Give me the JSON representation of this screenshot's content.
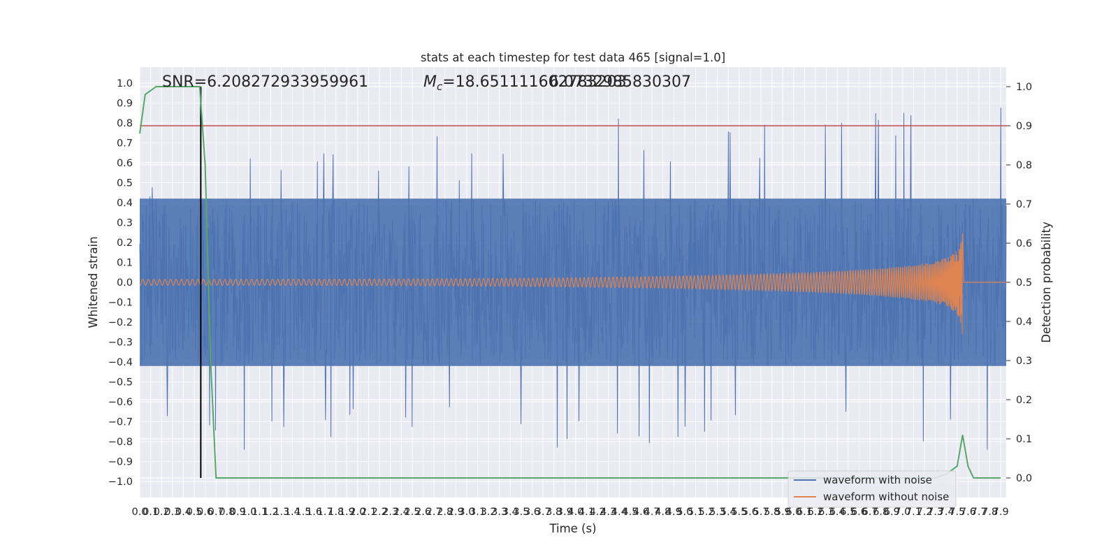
{
  "chart_data": {
    "type": "line",
    "title": "stats at each timestep for test data 465 [signal=1.0]",
    "xlabel": "Time (s)",
    "ylabel_left": "Whitened strain",
    "ylabel_right": "Detection probability",
    "xlim": [
      0.0,
      7.95
    ],
    "ylim_left": [
      -1.08,
      1.08
    ],
    "ylim_right": [
      -0.05,
      1.05
    ],
    "grid": true,
    "x_ticks": [
      "0.0",
      "0.1",
      "0.2",
      "0.3",
      "0.4",
      "0.5",
      "0.6",
      "0.7",
      "0.8",
      "0.9",
      "1.0",
      "1.1",
      "1.2",
      "1.3",
      "1.4",
      "1.5",
      "1.6",
      "1.7",
      "1.8",
      "1.9",
      "2.0",
      "2.1",
      "2.2",
      "2.3",
      "2.4",
      "2.5",
      "2.6",
      "2.7",
      "2.8",
      "2.9",
      "3.0",
      "3.1",
      "3.2",
      "3.3",
      "3.4",
      "3.5",
      "3.6",
      "3.7",
      "3.8",
      "3.9",
      "4.0",
      "4.1",
      "4.2",
      "4.3",
      "4.4",
      "4.5",
      "4.6",
      "4.7",
      "4.8",
      "4.9",
      "5.0",
      "5.1",
      "5.2",
      "5.3",
      "5.4",
      "5.5",
      "5.6",
      "5.7",
      "5.8",
      "5.9",
      "6.0",
      "6.1",
      "6.2",
      "6.3",
      "6.4",
      "6.5",
      "6.6",
      "6.7",
      "6.8",
      "6.9",
      "7.0",
      "7.1",
      "7.2",
      "7.3",
      "7.4",
      "7.5",
      "7.6",
      "7.7",
      "7.8",
      "7.9"
    ],
    "y_ticks_left": [
      "−1.0",
      "−0.9",
      "−0.8",
      "−0.7",
      "−0.6",
      "−0.5",
      "−0.4",
      "−0.3",
      "−0.2",
      "−0.1",
      "0.0",
      "0.1",
      "0.2",
      "0.3",
      "0.4",
      "0.5",
      "0.6",
      "0.7",
      "0.8",
      "0.9",
      "1.0"
    ],
    "y_ticks_right": [
      "0.0",
      "0.1",
      "0.2",
      "0.3",
      "0.4",
      "0.5",
      "0.6",
      "0.7",
      "0.8",
      "0.9",
      "1.0"
    ],
    "series": [
      {
        "name": "waveform with noise",
        "color": "#4c72b0",
        "description_values": "dense noisy strain, amplitude mostly within ±0.6 with spikes to about ±0.97",
        "envelope_top": [
          0.5,
          0.55,
          0.7,
          0.65,
          0.55,
          0.7,
          0.6,
          0.75,
          0.55,
          0.6,
          0.65,
          0.7,
          0.65,
          0.75,
          0.9,
          0.7,
          0.65,
          0.7,
          0.75,
          0.85,
          0.7,
          0.6,
          0.65,
          0.7,
          0.6,
          0.7,
          0.65,
          0.75,
          0.7,
          0.6,
          0.7,
          0.65,
          0.75,
          0.7,
          0.65,
          0.7,
          0.75,
          0.85,
          0.7,
          0.75,
          0.7,
          0.8,
          0.75,
          0.9,
          1.0,
          0.8,
          0.75,
          0.9,
          0.7,
          0.85,
          0.7,
          0.65,
          0.75,
          0.7,
          0.8,
          0.75,
          0.7,
          0.85,
          0.8,
          0.75,
          0.9,
          0.75,
          0.8,
          0.85,
          0.9,
          0.8,
          0.75,
          0.9,
          0.85,
          0.8,
          0.9,
          0.8,
          0.85,
          0.8,
          0.85,
          0.9,
          0.7,
          0.85,
          0.8,
          0.9
        ],
        "envelope_bottom": [
          -0.75,
          -0.85,
          -0.7,
          -0.9,
          -0.8,
          -0.7,
          -0.8,
          -0.75,
          -0.7,
          -0.97,
          -0.85,
          -0.8,
          -0.7,
          -0.75,
          -0.8,
          -0.75,
          -0.7,
          -0.8,
          -0.75,
          -0.7,
          -0.8,
          -0.7,
          -0.75,
          -0.8,
          -0.75,
          -0.7,
          -0.8,
          -0.75,
          -0.7,
          -0.95,
          -0.8,
          -0.75,
          -0.8,
          -0.7,
          -0.75,
          -0.85,
          -0.8,
          -0.75,
          -0.9,
          -0.8,
          -0.75,
          -0.8,
          -0.85,
          -0.8,
          -0.75,
          -0.8,
          -0.85,
          -0.75,
          -0.85,
          -0.8,
          -0.85,
          -0.8,
          -0.75,
          -0.8,
          -0.7,
          -0.75,
          -0.8,
          -0.75,
          -0.8,
          -0.8,
          -0.7,
          -0.75,
          -0.8,
          -0.8,
          -0.7,
          -0.75,
          -0.8,
          -0.85,
          -0.8,
          -0.75,
          -0.8,
          -0.85,
          -0.8,
          -0.75,
          -0.7,
          -0.8,
          -0.75,
          -0.85,
          -0.8,
          -0.75
        ]
      },
      {
        "name": "waveform without noise",
        "color": "#dd8452",
        "description_values": "chirp signal, amplitude growing from ~0 to about ±0.32 near t=7.55 then dropping to 0",
        "chirp_peak_time": 7.55,
        "chirp_peak_amplitude": 0.32
      },
      {
        "name": "detection probability",
        "color": "#55a868",
        "axis": "right",
        "x": [
          0.0,
          0.05,
          0.1,
          0.15,
          0.2,
          0.3,
          0.4,
          0.5,
          0.55,
          0.6,
          0.65,
          0.7,
          0.75,
          0.8,
          1.0,
          2.0,
          3.0,
          4.0,
          5.0,
          6.0,
          7.0,
          7.2,
          7.3,
          7.4,
          7.45,
          7.5,
          7.55,
          7.6,
          7.65,
          7.7,
          7.8,
          7.9
        ],
        "y": [
          0.88,
          0.98,
          0.99,
          1.0,
          1.0,
          1.0,
          1.0,
          1.0,
          1.0,
          0.8,
          0.3,
          0.0,
          0.0,
          0.0,
          0.0,
          0.0,
          0.0,
          0.0,
          0.0,
          0.0,
          0.0,
          0.0,
          0.0,
          0.01,
          0.02,
          0.03,
          0.11,
          0.03,
          0.0,
          0.0,
          0.0,
          0.0
        ]
      }
    ],
    "threshold_line": {
      "value": 0.9,
      "axis": "right",
      "color": "#c44e52"
    },
    "vertical_line": {
      "x": 0.56,
      "color": "#000000"
    },
    "annotations": {
      "snr": "SNR=6.208272933959961",
      "mc": "M_c=18.651111602783203",
      "overlap": "6.0732985830307"
    },
    "legend": {
      "placement": "lower-right",
      "entries": [
        "waveform with noise",
        "waveform without noise"
      ]
    }
  }
}
